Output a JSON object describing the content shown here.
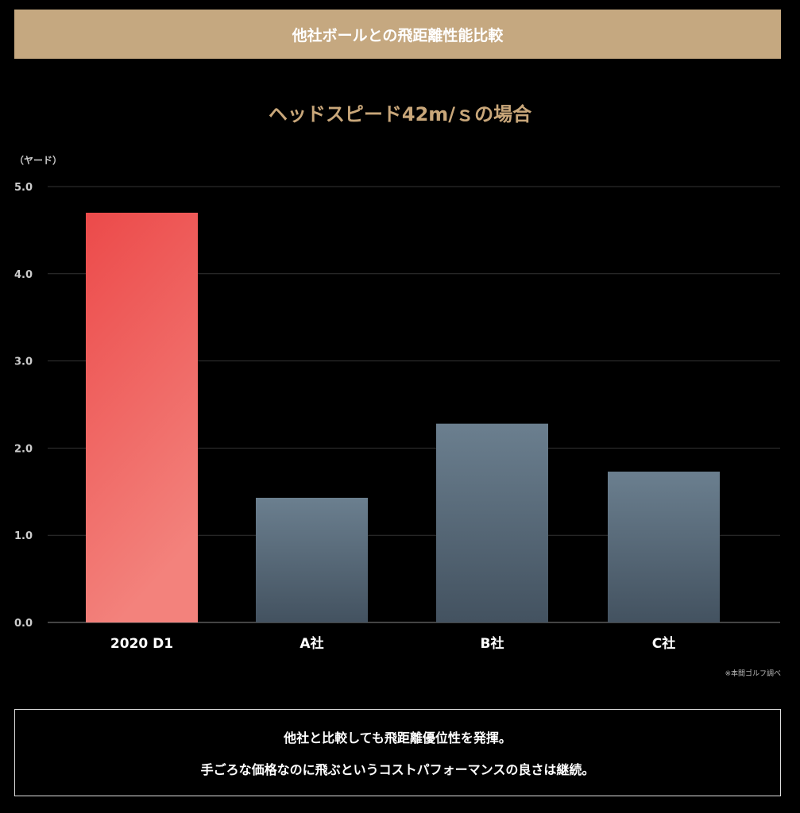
{
  "header": {
    "title": "他社ボールとの飛距離性能比較"
  },
  "chart_data": {
    "type": "bar",
    "title": "ヘッドスピード42m/ｓの場合",
    "ylabel": "（ヤード）",
    "xlabel": "",
    "categories": [
      "2020 D1",
      "A社",
      "B社",
      "C社"
    ],
    "values": [
      4.7,
      1.43,
      2.28,
      1.73
    ],
    "ylim": [
      0,
      5
    ],
    "yticks": [
      "0.0",
      "1.0",
      "2.0",
      "3.0",
      "4.0",
      "5.0"
    ],
    "grid": true,
    "colors": {
      "highlight_top": "#ec4a4a",
      "highlight_bottom": "#f3827c",
      "other_top": "#6b7f8f",
      "other_bottom": "#435260"
    }
  },
  "footnote": "※本間ゴルフ調べ",
  "summary": {
    "line1": "他社と比較しても飛距離優位性を発揮。",
    "line2": "手ごろな価格なのに飛ぶというコストパフォーマンスの良さは継続。"
  }
}
